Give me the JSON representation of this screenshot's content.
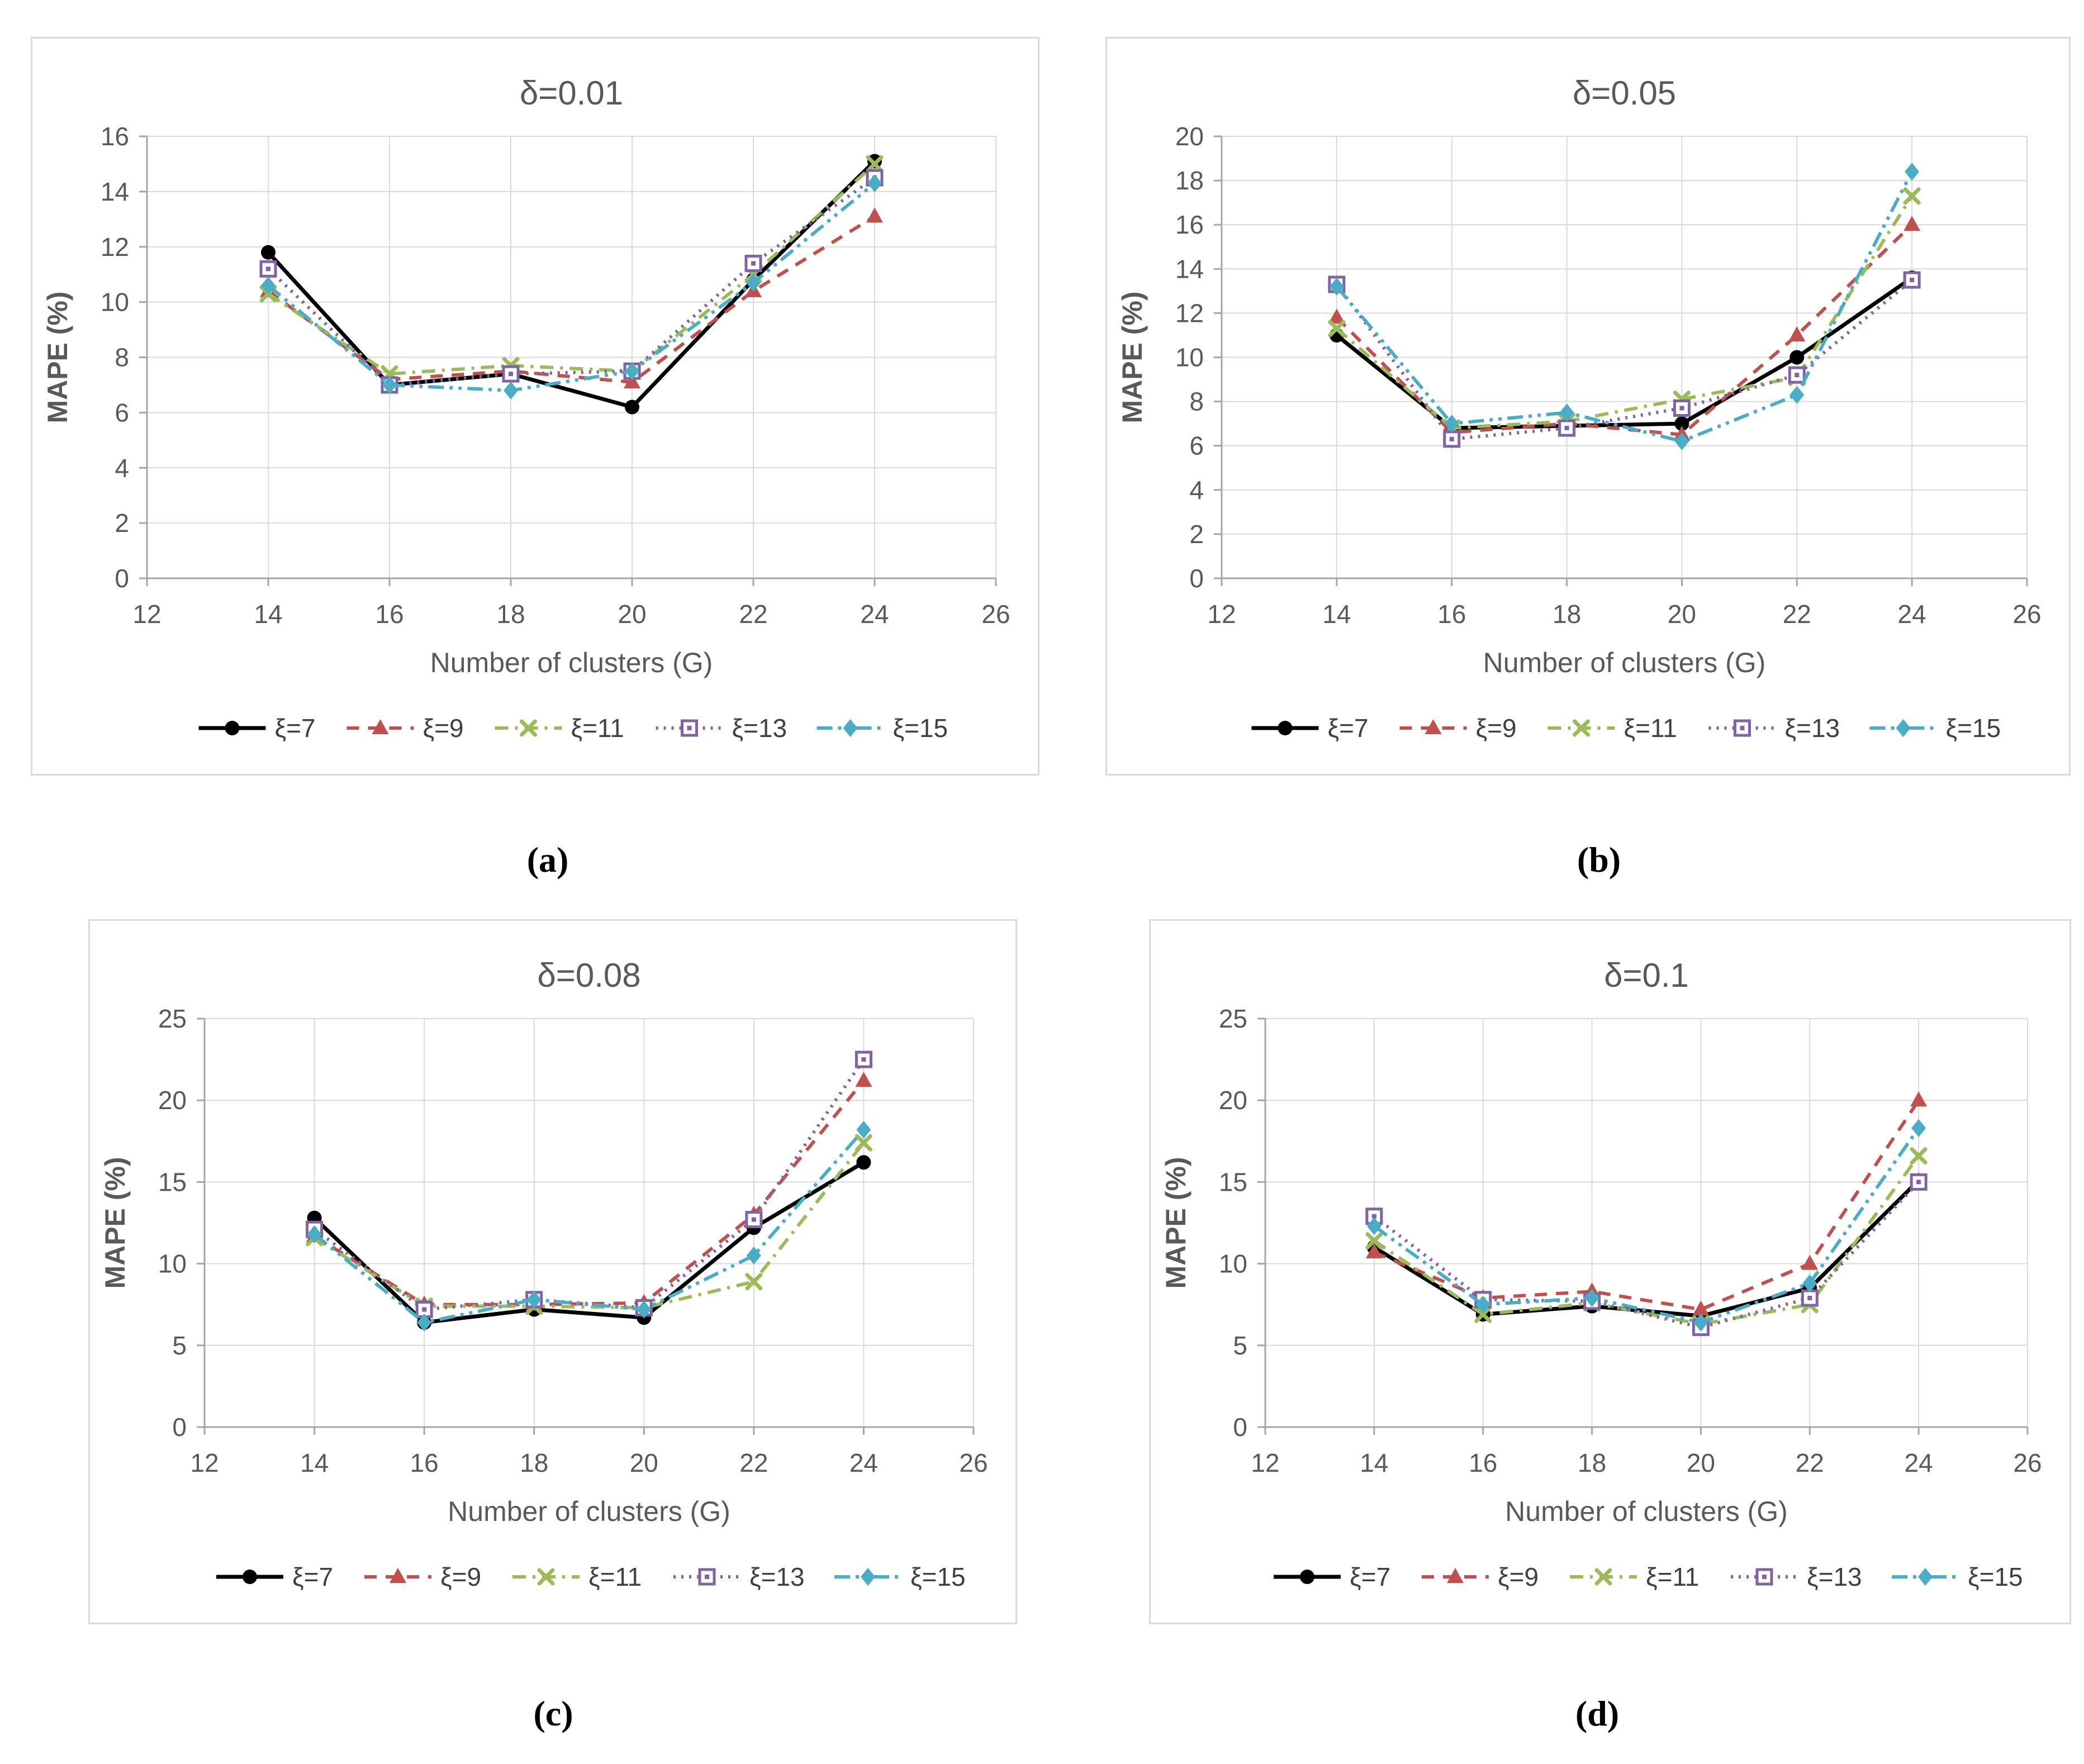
{
  "figure": {
    "captions": [
      "(a)",
      "(b)",
      "(c)",
      "(d)"
    ]
  },
  "style": {
    "series_colors": [
      "#000000",
      "#c0504d",
      "#9bbb59",
      "#8064a2",
      "#4bacc6"
    ],
    "series_markers": [
      "circle",
      "triangle",
      "x",
      "square-open",
      "diamond"
    ],
    "series_dashes": [
      "",
      "22 16",
      "24 12 5 12",
      "4 10",
      "28 10 6 10 6 10"
    ],
    "grid_color": "#d9d9d9",
    "axis_color": "#a6a6a6",
    "tick_label_color": "#595959",
    "title_color": "#595959",
    "legend_text_color": "#404040"
  },
  "chart_data": [
    {
      "type": "line",
      "title": "δ=0.01",
      "xlabel": "Number of clusters (G)",
      "ylabel": "MAPE (%)",
      "xlim": [
        12,
        26
      ],
      "xtick": 2,
      "ylim": [
        0,
        16
      ],
      "ytick": 2,
      "grid": true,
      "legend_position": "bottom",
      "x": [
        14,
        16,
        18,
        20,
        22,
        24
      ],
      "series": [
        {
          "name": "ξ=7",
          "values": [
            11.8,
            7.0,
            7.4,
            6.2,
            10.8,
            15.1
          ]
        },
        {
          "name": "ξ=9",
          "values": [
            10.4,
            7.2,
            7.5,
            7.1,
            10.4,
            13.1
          ]
        },
        {
          "name": "ξ=11",
          "values": [
            10.3,
            7.4,
            7.7,
            7.5,
            11.0,
            15.0
          ]
        },
        {
          "name": "ξ=13",
          "values": [
            11.2,
            7.0,
            7.4,
            7.5,
            11.4,
            14.5
          ]
        },
        {
          "name": "ξ=15",
          "values": [
            10.6,
            7.0,
            6.8,
            7.5,
            10.7,
            14.3
          ]
        }
      ]
    },
    {
      "type": "line",
      "title": "δ=0.05",
      "xlabel": "Number of clusters (G)",
      "ylabel": "MAPE (%)",
      "xlim": [
        12,
        26
      ],
      "xtick": 2,
      "ylim": [
        0,
        20
      ],
      "ytick": 2,
      "grid": true,
      "legend_position": "bottom",
      "x": [
        14,
        16,
        18,
        20,
        22,
        24
      ],
      "series": [
        {
          "name": "ξ=7",
          "values": [
            11.0,
            6.8,
            6.9,
            7.0,
            10.0,
            13.6
          ]
        },
        {
          "name": "ξ=9",
          "values": [
            11.8,
            6.6,
            7.0,
            6.5,
            11.0,
            16.0
          ]
        },
        {
          "name": "ξ=11",
          "values": [
            11.3,
            6.8,
            7.1,
            8.1,
            9.1,
            17.3
          ]
        },
        {
          "name": "ξ=13",
          "values": [
            13.3,
            6.3,
            6.8,
            7.7,
            9.2,
            13.5
          ]
        },
        {
          "name": "ξ=15",
          "values": [
            13.2,
            7.0,
            7.5,
            6.2,
            8.3,
            18.4
          ]
        }
      ]
    },
    {
      "type": "line",
      "title": "δ=0.08",
      "xlabel": "Number of clusters (G)",
      "ylabel": "MAPE (%)",
      "xlim": [
        12,
        26
      ],
      "xtick": 2,
      "ylim": [
        0,
        25
      ],
      "ytick": 5,
      "grid": true,
      "legend_position": "bottom",
      "x": [
        14,
        16,
        18,
        20,
        22,
        24
      ],
      "series": [
        {
          "name": "ξ=7",
          "values": [
            12.8,
            6.4,
            7.2,
            6.7,
            12.2,
            16.2
          ]
        },
        {
          "name": "ξ=9",
          "values": [
            11.7,
            7.5,
            7.5,
            7.6,
            13.0,
            21.2
          ]
        },
        {
          "name": "ξ=11",
          "values": [
            11.6,
            7.4,
            7.4,
            7.3,
            8.9,
            17.4
          ]
        },
        {
          "name": "ξ=13",
          "values": [
            12.1,
            7.2,
            7.8,
            7.3,
            12.7,
            22.5
          ]
        },
        {
          "name": "ξ=15",
          "values": [
            11.8,
            6.4,
            7.8,
            7.2,
            10.5,
            18.2
          ]
        }
      ]
    },
    {
      "type": "line",
      "title": "δ=0.1",
      "xlabel": "Number of clusters (G)",
      "ylabel": "MAPE (%)",
      "xlim": [
        12,
        26
      ],
      "xtick": 2,
      "ylim": [
        0,
        25
      ],
      "ytick": 5,
      "grid": true,
      "legend_position": "bottom",
      "x": [
        14,
        16,
        18,
        20,
        22,
        24
      ],
      "series": [
        {
          "name": "ξ=7",
          "values": [
            11.0,
            6.9,
            7.4,
            6.8,
            8.5,
            15.1
          ]
        },
        {
          "name": "ξ=9",
          "values": [
            10.7,
            7.9,
            8.3,
            7.2,
            10.0,
            20.0
          ]
        },
        {
          "name": "ξ=11",
          "values": [
            11.4,
            6.9,
            7.6,
            6.3,
            7.5,
            16.6
          ]
        },
        {
          "name": "ξ=13",
          "values": [
            12.9,
            7.8,
            7.7,
            6.1,
            7.9,
            15.0
          ]
        },
        {
          "name": "ξ=15",
          "values": [
            12.3,
            7.5,
            7.9,
            6.4,
            8.8,
            18.3
          ]
        }
      ]
    }
  ]
}
